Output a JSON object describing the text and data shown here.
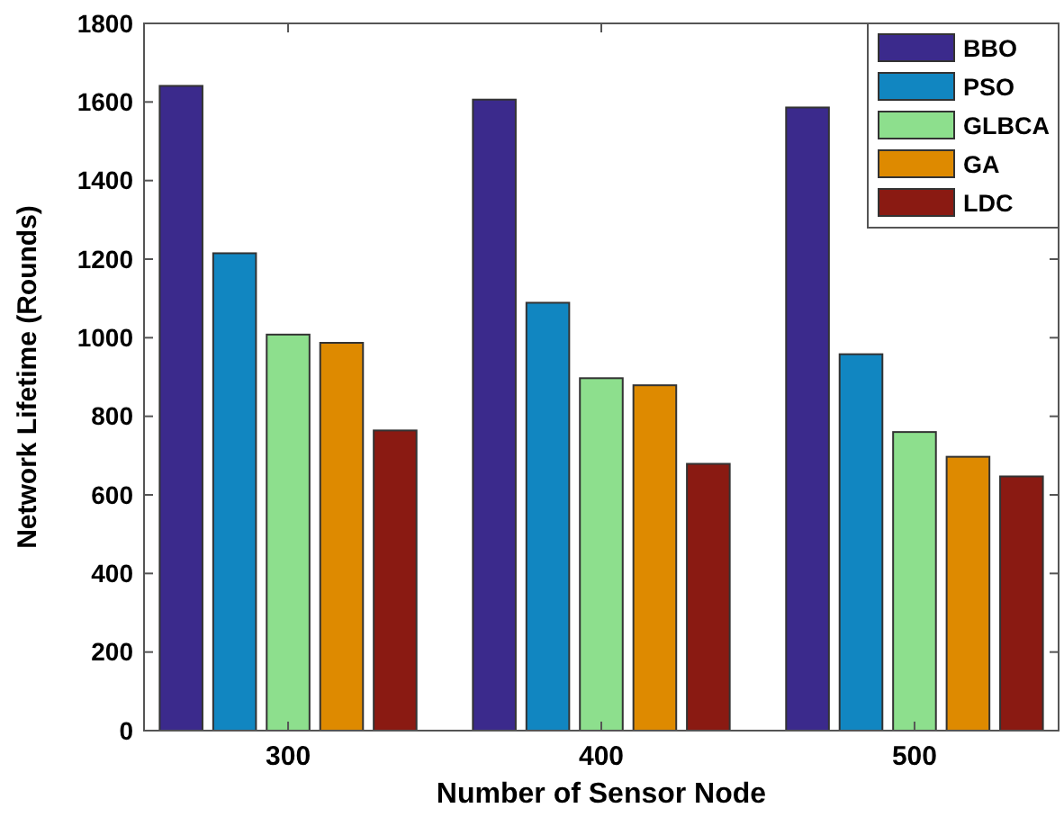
{
  "chart_data": {
    "type": "bar",
    "xlabel": "Number of Sensor Node",
    "ylabel": "Network Lifetime (Rounds)",
    "categories": [
      "300",
      "400",
      "500"
    ],
    "series": [
      {
        "name": "BBO",
        "color": "#3b2a8c",
        "values": [
          1641,
          1606,
          1586
        ]
      },
      {
        "name": "PSO",
        "color": "#1186c1",
        "values": [
          1215,
          1089,
          958
        ]
      },
      {
        "name": "GLBCA",
        "color": "#8ddf8d",
        "values": [
          1008,
          897,
          760
        ]
      },
      {
        "name": "GA",
        "color": "#de8a00",
        "values": [
          987,
          879,
          697
        ]
      },
      {
        "name": "LDC",
        "color": "#8a1a12",
        "values": [
          764,
          679,
          647
        ]
      }
    ],
    "ylim": [
      0,
      1800
    ],
    "yticks": [
      0,
      200,
      400,
      600,
      800,
      1000,
      1200,
      1400,
      1600,
      1800
    ],
    "legend": "top right",
    "grid": false
  }
}
